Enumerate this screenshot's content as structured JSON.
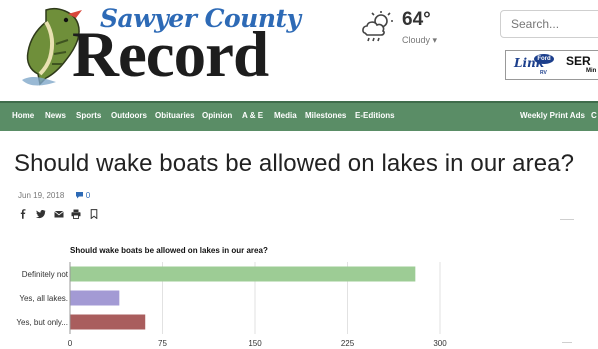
{
  "logo": {
    "line1": "Sawyer County",
    "line2": "Record"
  },
  "weather": {
    "icon": "partly-cloudy-rain-icon",
    "temperature": "64°",
    "condition": "Cloudy"
  },
  "search": {
    "placeholder": "Search..."
  },
  "ad": {
    "brand": "Link",
    "oval": "Ford",
    "text": "SER",
    "sub": "Min",
    "sub2": "RV"
  },
  "nav": {
    "items": [
      "Home",
      "News",
      "Sports",
      "Outdoors",
      "Obituaries",
      "Opinion",
      "A & E",
      "Media",
      "Milestones",
      "E-Editions"
    ],
    "right_item": "Weekly Print Ads",
    "overflow_item": "C"
  },
  "article": {
    "title": "Should wake boats be allowed on lakes in our area?",
    "date": "Jun 19, 2018",
    "comment_count": "0",
    "share_icons": [
      "facebook-icon",
      "twitter-icon",
      "email-icon",
      "print-icon",
      "bookmark-icon"
    ]
  },
  "chart_data": {
    "type": "bar",
    "orientation": "horizontal",
    "title": "Should wake boats be allowed on lakes in our area?",
    "categories": [
      "Definitely not",
      "Yes, all lakes.",
      "Yes, but only..."
    ],
    "values": [
      280,
      40,
      61
    ],
    "colors": [
      "#9dcc95",
      "#a39ad4",
      "#a95d5d"
    ],
    "xlim": [
      0,
      300
    ],
    "xticks": [
      "0",
      "75",
      "150",
      "225",
      "300"
    ],
    "xtick_values": [
      0,
      75,
      150,
      225,
      300
    ],
    "grid": true,
    "legend": "none"
  },
  "colors": {
    "nav_bg": "#5a8d66",
    "logo_blue": "#2d6ab6"
  }
}
